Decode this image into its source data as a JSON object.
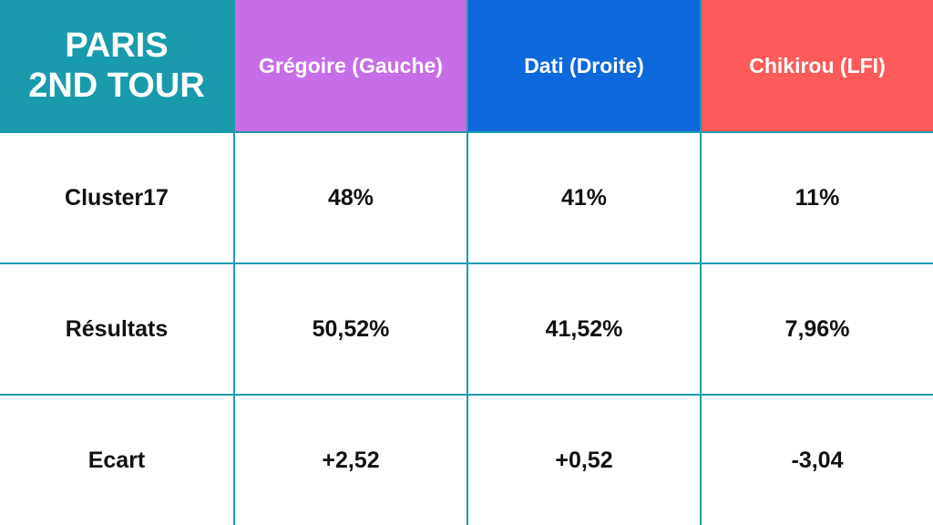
{
  "header": {
    "title_lines": [
      "PARIS",
      "2ND TOUR"
    ],
    "columns": [
      "Grégoire (Gauche)",
      "Dati (Droite)",
      "Chikirou (LFI)"
    ]
  },
  "table": {
    "rows": [
      [
        "Cluster17",
        "48%",
        "41%",
        "11%"
      ],
      [
        "Résultats",
        "50,52%",
        "41,52%",
        "7,96%"
      ],
      [
        "Ecart",
        "+2,52",
        "+0,52",
        "-3,04"
      ]
    ]
  }
}
